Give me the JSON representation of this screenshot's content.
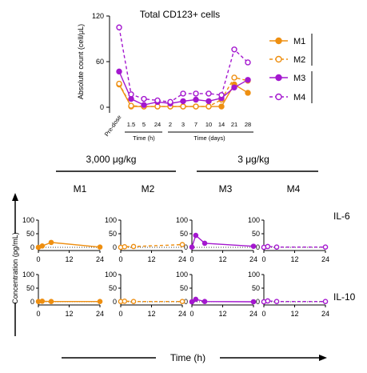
{
  "colors": {
    "orange": "#EE8F11",
    "purple": "#A418CF",
    "axis": "#000000"
  },
  "chart_data": [
    {
      "type": "line",
      "title": "Total CD123+ cells",
      "ylabel": "Absolute count (cell/μL)",
      "ylim": [
        0,
        120
      ],
      "yticks": [
        0,
        60,
        120
      ],
      "categories": [
        "Pre-dose",
        "1.5",
        "5",
        "24",
        "2",
        "3",
        "7",
        "10",
        "14",
        "21",
        "28"
      ],
      "group_labels": [
        "Time (h)",
        "Time (days)"
      ],
      "legend": [
        "M1",
        "M2",
        "M3",
        "M4"
      ],
      "series": [
        {
          "name": "M1",
          "color": "orange",
          "style": "solid",
          "marker": "filled",
          "values": [
            30,
            1,
            1,
            1,
            1,
            1,
            1,
            1,
            1,
            30,
            19
          ]
        },
        {
          "name": "M2",
          "color": "orange",
          "style": "dashed",
          "marker": "open",
          "values": [
            31,
            2,
            1,
            1,
            1,
            1,
            1,
            1,
            10,
            39,
            35
          ]
        },
        {
          "name": "M3",
          "color": "purple",
          "style": "solid",
          "marker": "filled",
          "values": [
            47,
            11,
            3,
            7,
            5,
            8,
            10,
            8,
            12,
            26,
            36
          ]
        },
        {
          "name": "M4",
          "color": "purple",
          "style": "dashed",
          "marker": "open",
          "values": [
            105,
            17,
            11,
            9,
            7,
            18,
            18,
            18,
            16,
            76,
            59
          ]
        }
      ]
    },
    {
      "type": "line",
      "group_labels": [
        "3,000 μg/kg",
        "3 μg/kg"
      ],
      "panel_titles": [
        "M1",
        "M2",
        "M3",
        "M4"
      ],
      "row_labels": [
        "IL-6",
        "IL-10"
      ],
      "ylabel": "Concentration (pg/mL)",
      "xlabel": "Time (h)",
      "ylim": [
        0,
        100
      ],
      "yticks": [
        0,
        50,
        100
      ],
      "xlim": [
        0,
        24
      ],
      "xticks": [
        0,
        12,
        24
      ],
      "panels": [
        {
          "row": 0,
          "col": 0,
          "color": "orange",
          "style": "solid",
          "marker": "filled",
          "x": [
            0,
            1.5,
            5,
            24
          ],
          "y": [
            0,
            5,
            18,
            1
          ]
        },
        {
          "row": 0,
          "col": 1,
          "color": "orange",
          "style": "dashed",
          "marker": "open",
          "x": [
            0,
            1.5,
            5,
            24
          ],
          "y": [
            0,
            2,
            3,
            10
          ]
        },
        {
          "row": 0,
          "col": 2,
          "color": "purple",
          "style": "solid",
          "marker": "filled",
          "x": [
            0,
            1.5,
            5,
            24
          ],
          "y": [
            1,
            44,
            15,
            4
          ]
        },
        {
          "row": 0,
          "col": 3,
          "color": "purple",
          "style": "dashed",
          "marker": "open",
          "x": [
            0,
            1.5,
            5,
            24
          ],
          "y": [
            0,
            3,
            1,
            1
          ]
        },
        {
          "row": 1,
          "col": 0,
          "color": "orange",
          "style": "solid",
          "marker": "filled",
          "x": [
            0,
            1.5,
            5,
            24
          ],
          "y": [
            1,
            2,
            1,
            1
          ]
        },
        {
          "row": 1,
          "col": 1,
          "color": "orange",
          "style": "dashed",
          "marker": "open",
          "x": [
            0,
            1.5,
            5,
            24
          ],
          "y": [
            1,
            2,
            1,
            1
          ]
        },
        {
          "row": 1,
          "col": 2,
          "color": "purple",
          "style": "solid",
          "marker": "filled",
          "x": [
            0,
            1.5,
            5,
            24
          ],
          "y": [
            0,
            9,
            1,
            0
          ]
        },
        {
          "row": 1,
          "col": 3,
          "color": "purple",
          "style": "dashed",
          "marker": "open",
          "x": [
            0,
            1.5,
            5,
            24
          ],
          "y": [
            0,
            3,
            1,
            1
          ]
        }
      ]
    }
  ]
}
